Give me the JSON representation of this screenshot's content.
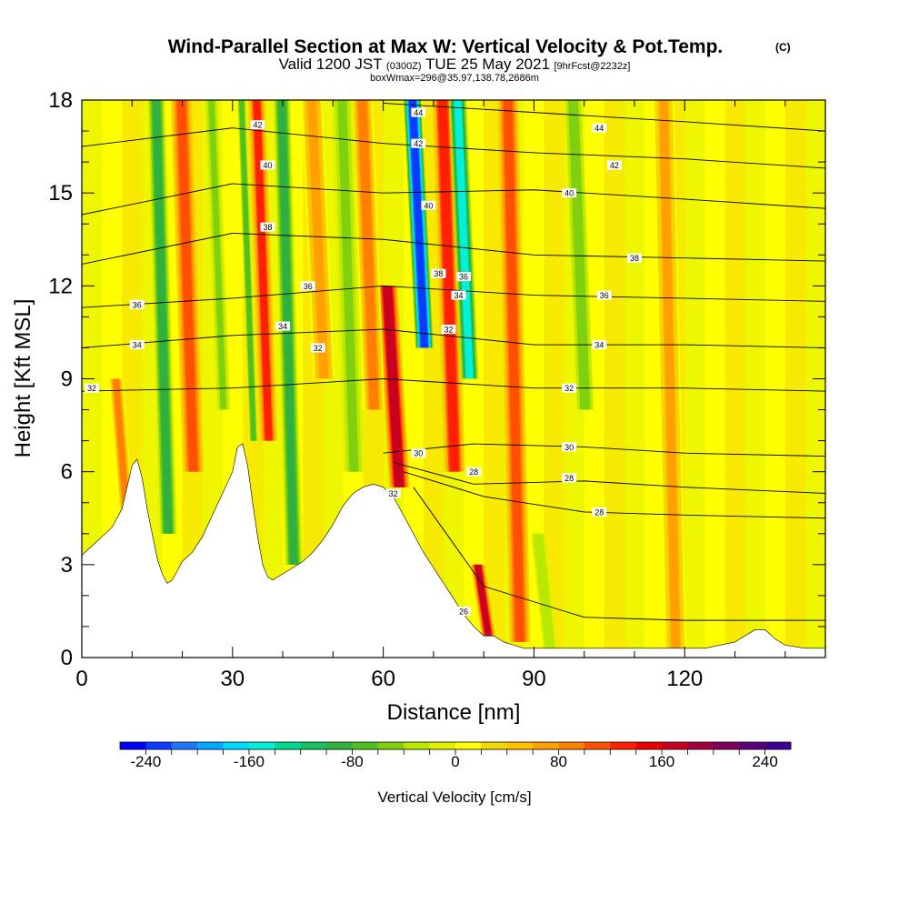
{
  "chart_data": {
    "type": "heatmap",
    "title": "Wind-Parallel Section at Max W: Vertical Velocity & Pot.Temp.",
    "title_mark": "(C)",
    "subtitle_parts": [
      "Valid 1200 JST",
      "(0300Z)",
      "TUE 25 May 2021",
      "[9hrFcst@2232z]"
    ],
    "subtitle2": "boxWmax=296@35.97,138.78,2686m",
    "xlabel": "Distance [nm]",
    "ylabel": "Height [Kft MSL]",
    "xlim": [
      0,
      148
    ],
    "ylim": [
      0,
      18
    ],
    "x_ticks": [
      0,
      30,
      60,
      90,
      120
    ],
    "y_ticks": [
      0,
      3,
      6,
      9,
      12,
      15,
      18
    ],
    "colorbar": {
      "label": "Vertical Velocity [cm/s]",
      "min": -260,
      "max": 260,
      "step": 20,
      "tick_values": [
        -240,
        -160,
        -80,
        0,
        80,
        160,
        240
      ],
      "colors": [
        "#0000ff",
        "#0a3cff",
        "#1e78ff",
        "#00a8ff",
        "#00dcff",
        "#00f0d8",
        "#00d890",
        "#18c060",
        "#30b040",
        "#50c020",
        "#80d010",
        "#b8e800",
        "#e0f000",
        "#ffff00",
        "#f0d800",
        "#ffc000",
        "#ffa000",
        "#ff8000",
        "#ff5000",
        "#ff2000",
        "#ee0000",
        "#c80020",
        "#a00040",
        "#800060",
        "#5a007a",
        "#3c0096"
      ]
    },
    "terrain_kft": [
      [
        0,
        3.3
      ],
      [
        2,
        3.6
      ],
      [
        4,
        3.9
      ],
      [
        6,
        4.2
      ],
      [
        8,
        4.8
      ],
      [
        9,
        5.5
      ],
      [
        10,
        6.2
      ],
      [
        11,
        6.4
      ],
      [
        12,
        5.8
      ],
      [
        13,
        4.8
      ],
      [
        14,
        4.0
      ],
      [
        15,
        3.2
      ],
      [
        16,
        2.7
      ],
      [
        17,
        2.4
      ],
      [
        18,
        2.5
      ],
      [
        19,
        2.8
      ],
      [
        20,
        3.1
      ],
      [
        22,
        3.4
      ],
      [
        24,
        3.9
      ],
      [
        26,
        4.6
      ],
      [
        28,
        5.3
      ],
      [
        30,
        6.0
      ],
      [
        31,
        6.8
      ],
      [
        32,
        6.9
      ],
      [
        33,
        6.2
      ],
      [
        34,
        5.0
      ],
      [
        35,
        3.9
      ],
      [
        36,
        3.0
      ],
      [
        37,
        2.6
      ],
      [
        38,
        2.5
      ],
      [
        40,
        2.7
      ],
      [
        42,
        2.9
      ],
      [
        44,
        3.1
      ],
      [
        46,
        3.4
      ],
      [
        48,
        3.8
      ],
      [
        50,
        4.3
      ],
      [
        52,
        4.9
      ],
      [
        54,
        5.3
      ],
      [
        56,
        5.5
      ],
      [
        58,
        5.6
      ],
      [
        60,
        5.5
      ],
      [
        62,
        5.2
      ],
      [
        64,
        4.6
      ],
      [
        66,
        4.0
      ],
      [
        68,
        3.4
      ],
      [
        70,
        2.9
      ],
      [
        72,
        2.4
      ],
      [
        74,
        1.9
      ],
      [
        76,
        1.4
      ],
      [
        78,
        1.0
      ],
      [
        80,
        0.7
      ],
      [
        82,
        0.7
      ],
      [
        84,
        0.5
      ],
      [
        86,
        0.4
      ],
      [
        88,
        0.3
      ],
      [
        90,
        0.3
      ],
      [
        100,
        0.3
      ],
      [
        110,
        0.3
      ],
      [
        116,
        0.3
      ],
      [
        120,
        0.3
      ],
      [
        124,
        0.3
      ],
      [
        130,
        0.5
      ],
      [
        134,
        0.9
      ],
      [
        136,
        0.9
      ],
      [
        138,
        0.6
      ],
      [
        140,
        0.4
      ],
      [
        144,
        0.3
      ],
      [
        148,
        0.3
      ]
    ],
    "theta_contours": [
      {
        "label": "26",
        "y_at_x": [
          [
            66,
            5.5
          ],
          [
            80,
            2.3
          ],
          [
            100,
            1.3
          ],
          [
            120,
            1.2
          ],
          [
            148,
            1.2
          ]
        ],
        "label_at": [
          76,
          1.5
        ]
      },
      {
        "label": "28",
        "y_at_x": [
          [
            64,
            6.0
          ],
          [
            80,
            5.2
          ],
          [
            100,
            4.7
          ],
          [
            120,
            4.6
          ],
          [
            148,
            4.5
          ]
        ],
        "label_at": [
          103,
          4.7
        ]
      },
      {
        "label": "28",
        "y_at_x": [
          [
            62,
            6.3
          ],
          [
            78,
            5.6
          ],
          [
            100,
            5.7
          ],
          [
            120,
            5.5
          ],
          [
            148,
            5.3
          ]
        ],
        "label_at": [
          97,
          5.8
        ]
      },
      {
        "label": "30",
        "y_at_x": [
          [
            60,
            6.6
          ],
          [
            78,
            6.9
          ],
          [
            100,
            6.8
          ],
          [
            120,
            6.6
          ],
          [
            148,
            6.5
          ]
        ],
        "label_at": [
          97,
          6.8
        ]
      },
      {
        "label": "32",
        "y_at_x": [
          [
            0,
            8.6
          ],
          [
            30,
            8.7
          ],
          [
            60,
            9.0
          ],
          [
            90,
            8.7
          ],
          [
            120,
            8.7
          ],
          [
            148,
            8.6
          ]
        ],
        "label_at": [
          97,
          8.7
        ]
      },
      {
        "label": "34",
        "y_at_x": [
          [
            0,
            10.0
          ],
          [
            30,
            10.4
          ],
          [
            60,
            10.6
          ],
          [
            90,
            10.1
          ],
          [
            120,
            10.1
          ],
          [
            148,
            10.0
          ]
        ],
        "label_at": [
          103,
          10.1
        ]
      },
      {
        "label": "36",
        "y_at_x": [
          [
            0,
            11.3
          ],
          [
            30,
            11.6
          ],
          [
            60,
            12.0
          ],
          [
            90,
            11.7
          ],
          [
            120,
            11.6
          ],
          [
            148,
            11.5
          ]
        ],
        "label_at": [
          104,
          11.7
        ]
      },
      {
        "label": "38",
        "y_at_x": [
          [
            0,
            12.7
          ],
          [
            30,
            13.7
          ],
          [
            60,
            13.5
          ],
          [
            90,
            13.0
          ],
          [
            120,
            12.9
          ],
          [
            148,
            12.8
          ]
        ],
        "label_at": [
          110,
          12.9
        ]
      },
      {
        "label": "40",
        "y_at_x": [
          [
            0,
            14.3
          ],
          [
            30,
            15.3
          ],
          [
            60,
            15.0
          ],
          [
            90,
            15.1
          ],
          [
            120,
            14.8
          ],
          [
            148,
            14.5
          ]
        ],
        "label_at": [
          97,
          15.0
        ]
      },
      {
        "label": "42",
        "y_at_x": [
          [
            0,
            16.5
          ],
          [
            30,
            17.1
          ],
          [
            60,
            16.6
          ],
          [
            90,
            16.3
          ],
          [
            120,
            16.1
          ],
          [
            148,
            15.8
          ]
        ],
        "label_at": [
          106,
          15.9
        ]
      },
      {
        "label": "44",
        "y_at_x": [
          [
            60,
            17.9
          ],
          [
            90,
            17.6
          ],
          [
            120,
            17.3
          ],
          [
            148,
            17.0
          ]
        ],
        "label_at": [
          103,
          17.1
        ]
      }
    ],
    "contour_labels_left": [
      {
        "label": "32",
        "at": [
          2,
          8.7
        ]
      },
      {
        "label": "34",
        "at": [
          11,
          10.1
        ]
      },
      {
        "label": "36",
        "at": [
          11,
          11.4
        ]
      },
      {
        "label": "34",
        "at": [
          40,
          10.7
        ]
      },
      {
        "label": "32",
        "at": [
          47,
          10.0
        ]
      },
      {
        "label": "36",
        "at": [
          45,
          12.0
        ]
      },
      {
        "label": "38",
        "at": [
          37,
          13.9
        ]
      },
      {
        "label": "40",
        "at": [
          37,
          15.9
        ]
      },
      {
        "label": "42",
        "at": [
          35,
          17.2
        ]
      },
      {
        "label": "44",
        "at": [
          67,
          17.6
        ]
      },
      {
        "label": "42",
        "at": [
          67,
          16.6
        ]
      },
      {
        "label": "40",
        "at": [
          69,
          14.6
        ]
      },
      {
        "label": "38",
        "at": [
          71,
          12.4
        ]
      },
      {
        "label": "36",
        "at": [
          76,
          12.3
        ]
      },
      {
        "label": "34",
        "at": [
          75,
          11.7
        ]
      },
      {
        "label": "32",
        "at": [
          73,
          10.6
        ]
      },
      {
        "label": "30",
        "at": [
          67,
          6.6
        ]
      },
      {
        "label": "32",
        "at": [
          62,
          5.3
        ]
      },
      {
        "label": "28",
        "at": [
          78,
          6.0
        ]
      }
    ],
    "updraft_bands": [
      {
        "x": 62,
        "w": 1.8,
        "v": 280,
        "y0": 5.5,
        "y1": 11.5
      },
      {
        "x": 62,
        "w": 3,
        "v": 160,
        "y0": 5.5,
        "y1": 12
      },
      {
        "x": 73,
        "w": 3,
        "v": 130,
        "y0": 6,
        "y1": 18
      },
      {
        "x": 86,
        "w": 3,
        "v": 100,
        "y0": 0.5,
        "y1": 18
      },
      {
        "x": 21,
        "w": 3,
        "v": 110,
        "y0": 6,
        "y1": 18
      },
      {
        "x": 36,
        "w": 2.5,
        "v": 120,
        "y0": 7,
        "y1": 18
      },
      {
        "x": 57,
        "w": 3,
        "v": 80,
        "y0": 8,
        "y1": 18
      },
      {
        "x": 47,
        "w": 3,
        "v": 70,
        "y0": 9,
        "y1": 18
      },
      {
        "x": 80,
        "w": 2,
        "v": 160,
        "y0": 0.4,
        "y1": 3
      },
      {
        "x": 117,
        "w": 3,
        "v": 60,
        "y0": 0.3,
        "y1": 18
      },
      {
        "x": 8,
        "w": 2,
        "v": 90,
        "y0": 4,
        "y1": 9
      }
    ],
    "downdraft_bands": [
      {
        "x": 67,
        "w": 2.5,
        "v": -240,
        "y0": 10,
        "y1": 18
      },
      {
        "x": 76,
        "w": 2.5,
        "v": -150,
        "y0": 9,
        "y1": 18
      },
      {
        "x": 16,
        "w": 2.5,
        "v": -100,
        "y0": 4,
        "y1": 18
      },
      {
        "x": 41,
        "w": 2.5,
        "v": -90,
        "y0": 3,
        "y1": 18
      },
      {
        "x": 33,
        "w": 1.2,
        "v": -80,
        "y0": 7,
        "y1": 18
      },
      {
        "x": 27,
        "w": 2,
        "v": -50,
        "y0": 8,
        "y1": 18
      },
      {
        "x": 53,
        "w": 3,
        "v": -50,
        "y0": 6,
        "y1": 18
      },
      {
        "x": 99,
        "w": 2.5,
        "v": -60,
        "y0": 8,
        "y1": 18
      },
      {
        "x": 92,
        "w": 2,
        "v": -40,
        "y0": 0.3,
        "y1": 4
      }
    ]
  }
}
